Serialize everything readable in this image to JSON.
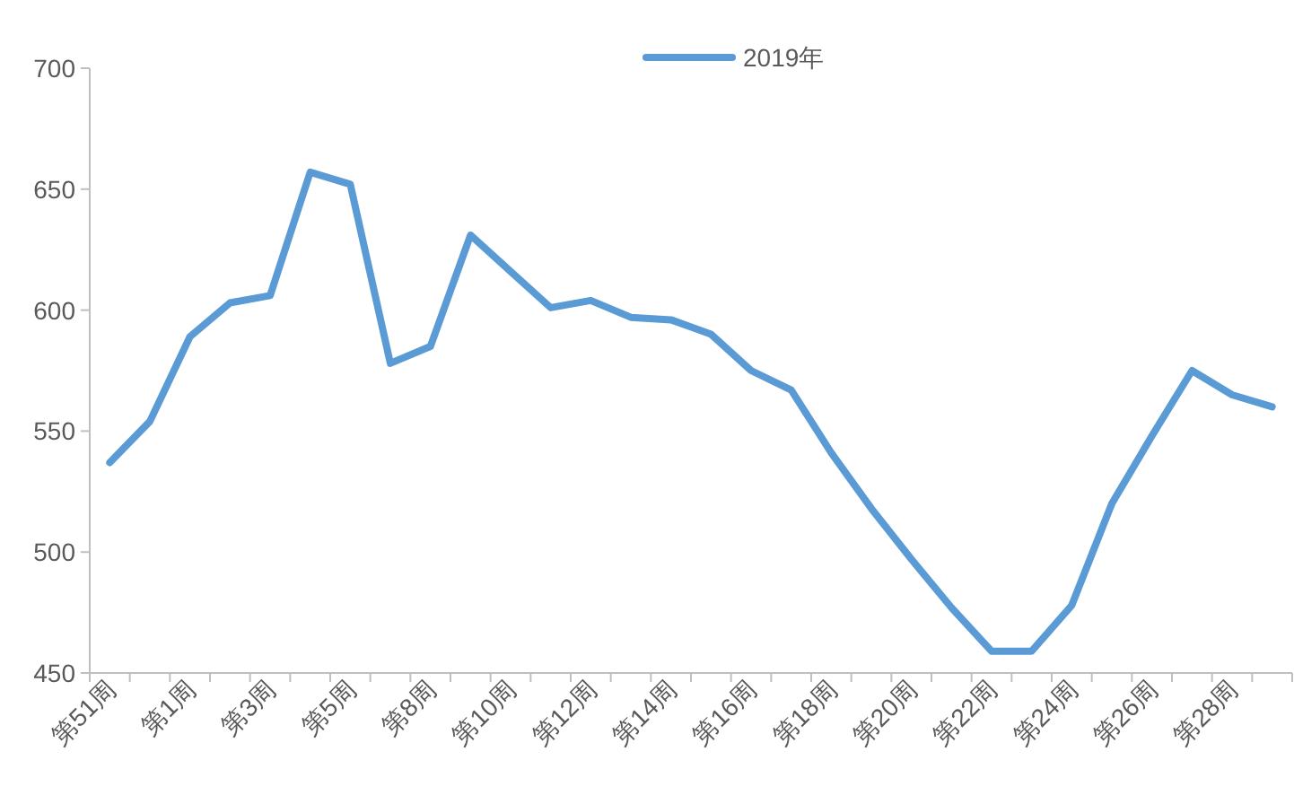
{
  "chart_data": {
    "type": "line",
    "categories": [
      "第51周",
      null,
      "第1周",
      null,
      "第3周",
      null,
      "第5周",
      null,
      "第8周",
      null,
      "第10周",
      null,
      "第12周",
      null,
      "第14周",
      null,
      "第16周",
      null,
      "第18周",
      null,
      "第20周",
      null,
      "第22周",
      null,
      "第24周",
      null,
      "第26周",
      null,
      "第28周",
      null
    ],
    "series": [
      {
        "name": "2019年",
        "color": "#5b9bd5",
        "values": [
          537,
          554,
          589,
          603,
          606,
          657,
          652,
          578,
          585,
          631,
          616,
          601,
          604,
          597,
          596,
          590,
          575,
          567,
          541,
          518,
          497,
          477,
          459,
          459,
          478,
          520,
          548,
          575,
          565,
          560
        ]
      }
    ],
    "ylim": [
      450,
      700
    ],
    "yticks": [
      450,
      500,
      550,
      600,
      650,
      700
    ],
    "grid": false,
    "legend": "top",
    "marker": "none",
    "line_style": "solid"
  }
}
